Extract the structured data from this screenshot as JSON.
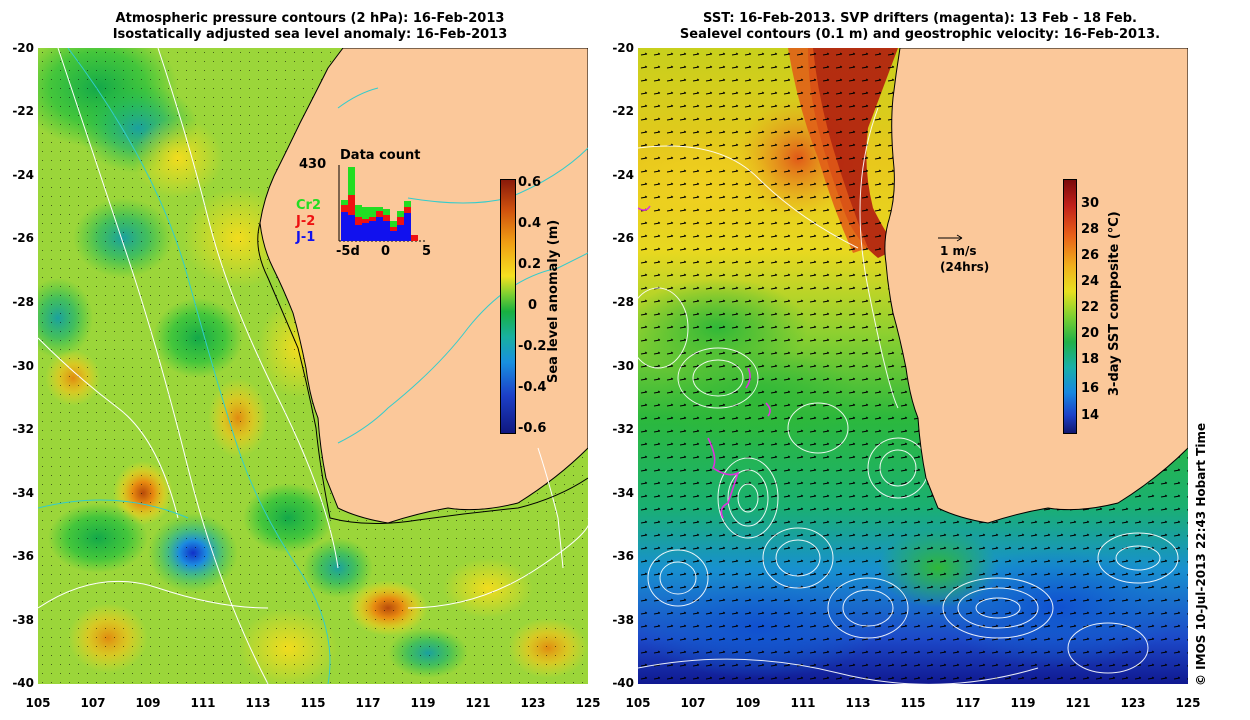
{
  "left_panel": {
    "title_line1": "Atmospheric pressure contours (2 hPa): 16-Feb-2013",
    "title_line2": "Isostatically adjusted sea level anomaly: 16-Feb-2013",
    "colorbar_label": "Sea level anomaly (m)",
    "colorbar_ticks": [
      "0.6",
      "0.4",
      "0.2",
      "0",
      "-0.2",
      "-0.4",
      "-0.6"
    ],
    "inset": {
      "title": "Data count",
      "max_count": "430",
      "legend": [
        {
          "label": "Cr2",
          "color": "#22dd22"
        },
        {
          "label": "J-2",
          "color": "#ee1111"
        },
        {
          "label": "J-1",
          "color": "#1111ee"
        }
      ],
      "x_ticks": [
        "-5d",
        "0",
        "5"
      ]
    }
  },
  "right_panel": {
    "title_line1": "SST: 16-Feb-2013. SVP drifters (magenta): 13 Feb - 18 Feb.",
    "title_line2": "Sealevel contours (0.1 m) and geostrophic velocity: 16-Feb-2013.",
    "colorbar_label": "3-day SST composite (°C)",
    "colorbar_ticks": [
      "30",
      "28",
      "26",
      "24",
      "22",
      "20",
      "18",
      "16",
      "14"
    ],
    "velocity_scale": "1 m/s",
    "velocity_scale_note": "(24hrs)"
  },
  "axes": {
    "y_ticks": [
      "-20",
      "-22",
      "-24",
      "-26",
      "-28",
      "-30",
      "-32",
      "-34",
      "-36",
      "-38",
      "-40"
    ],
    "x_ticks": [
      "105",
      "107",
      "109",
      "111",
      "113",
      "115",
      "117",
      "119",
      "121",
      "123",
      "125"
    ]
  },
  "copyright": "© IMOS 10-Jul-2013 22:43 Hobart Time",
  "colors": {
    "land": "#fbc89a",
    "coastline": "#000000",
    "drifter": "#dd33dd",
    "bathymetry_contour": "#33cccc"
  }
}
